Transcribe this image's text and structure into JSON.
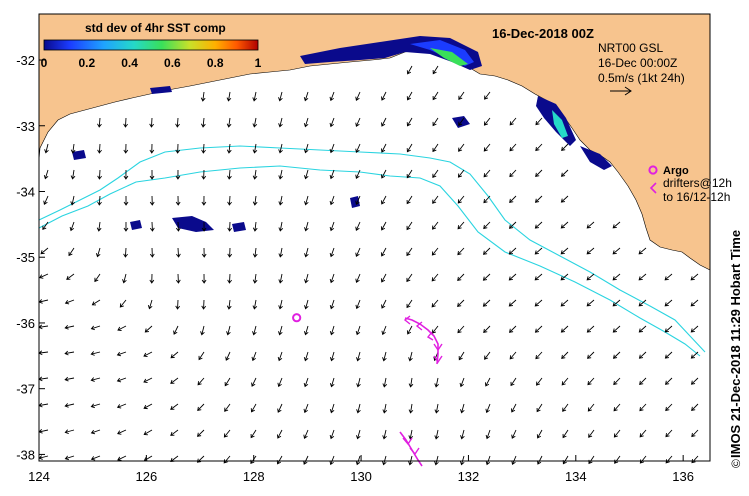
{
  "title": "16-Dec-2018 00Z",
  "colorbar": {
    "title": "std dev of 4hr SST comp",
    "ticks": [
      "0",
      "0.2",
      "0.4",
      "0.6",
      "0.8",
      "1"
    ],
    "colors": [
      "#0a0a8c",
      "#1b3cff",
      "#1fa3ff",
      "#25d9c8",
      "#39e05a",
      "#c8e12a",
      "#ffb000",
      "#ff5a00",
      "#b00000"
    ]
  },
  "product_label": {
    "line1": "NRT00 GSL",
    "line2": "16-Dec 00:00Z",
    "line3": "0.5m/s (1kt 24h)"
  },
  "argo_legend": {
    "label": "Argo"
  },
  "drifters_legend": {
    "line1": "drifters@12h",
    "line2": "to 16/12-12h"
  },
  "side_label": "IMOS 21-Dec-2018 11:29 Hobart Time",
  "copyright_symbol": "©",
  "axes": {
    "x_ticks": [
      "124",
      "126",
      "128",
      "130",
      "132",
      "134",
      "136"
    ],
    "y_ticks": [
      "-32",
      "-33",
      "-34",
      "-35",
      "-36",
      "-37",
      "-38"
    ],
    "xlim": [
      124,
      136.5
    ],
    "ylim": [
      -38.1,
      -31.3
    ]
  },
  "colors": {
    "land": "#f7c48e",
    "sst_high": "#0a0a8c",
    "contour": "#2ad4e0",
    "argo": "#e020e0",
    "arrow": "#000000"
  },
  "argo_floats": [
    {
      "lon": 128.8,
      "lat": -35.92
    }
  ]
}
